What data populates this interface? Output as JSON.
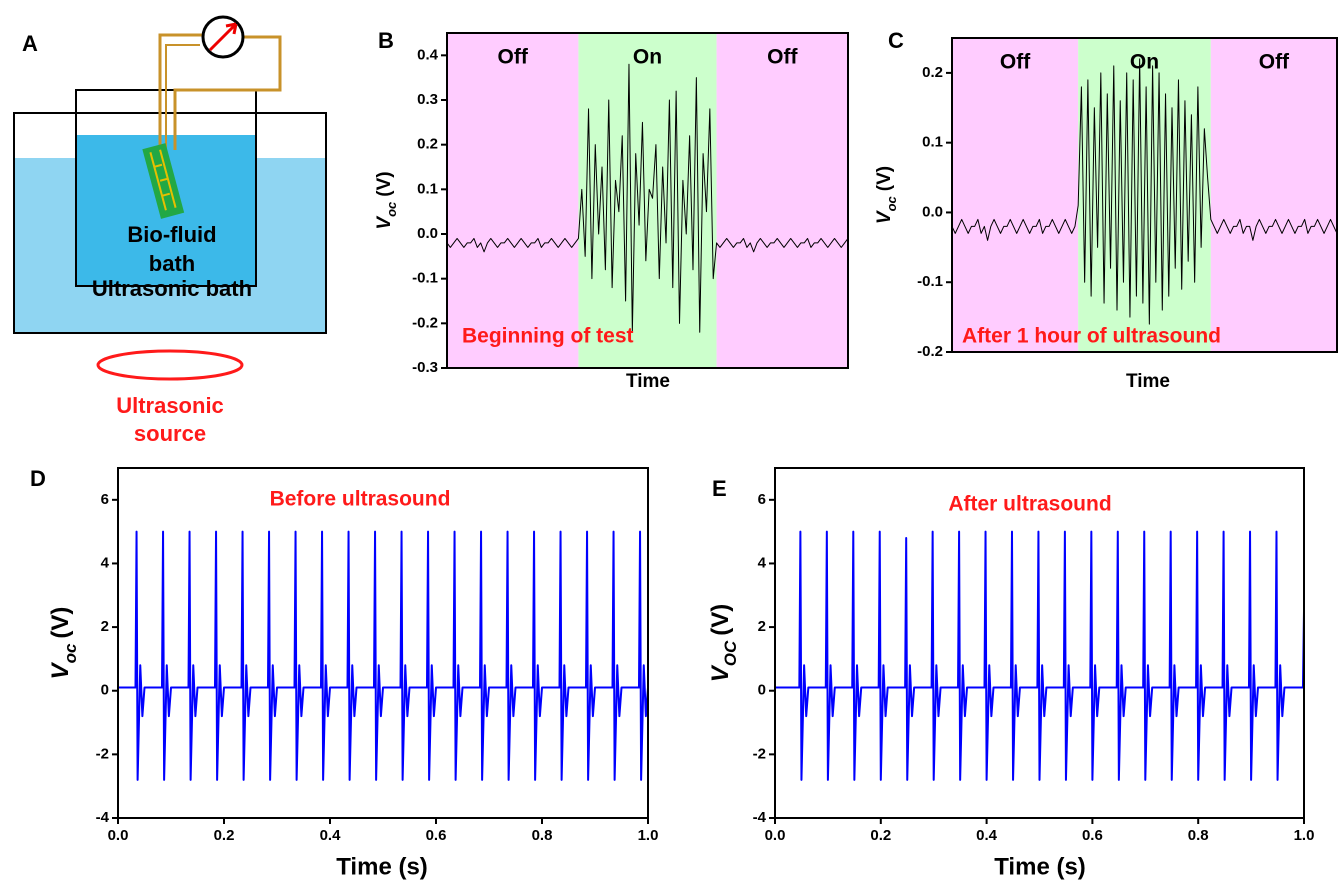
{
  "diagram": {
    "panel_label": "A",
    "fluid_lines": [
      "Bio-fluid",
      "bath"
    ],
    "bath_label": "Ultrasonic bath",
    "source_lines": [
      "Ultrasonic",
      "source"
    ]
  },
  "chart_data": [
    {
      "type": "line",
      "panel_label": "B",
      "x_label": "Time",
      "y_label": {
        "symbol": "V",
        "subscript": "oc",
        "unit": "(V)"
      },
      "annotation": "Beginning of test",
      "color": "#000000",
      "ylim": [
        -0.3,
        0.45
      ],
      "yticks": [
        -0.3,
        -0.2,
        -0.1,
        {
          "value": 0,
          "label": "0.0"
        },
        0.1,
        0.2,
        0.3,
        0.4
      ],
      "regions": [
        {
          "label": "Off",
          "color": "#ffccff",
          "start": 0,
          "end": 39
        },
        {
          "label": "On",
          "color": "#ccffcc",
          "start": 39,
          "end": 80
        },
        {
          "label": "Off",
          "color": "#ffccff",
          "start": 80,
          "end": 119
        }
      ],
      "values": [
        -0.02,
        -0.03,
        -0.02,
        -0.01,
        -0.02,
        -0.03,
        -0.02,
        -0.02,
        -0.01,
        -0.03,
        -0.02,
        -0.04,
        -0.02,
        -0.01,
        -0.02,
        -0.03,
        -0.02,
        -0.02,
        -0.01,
        -0.02,
        -0.03,
        -0.02,
        -0.01,
        -0.02,
        -0.03,
        -0.02,
        -0.02,
        -0.01,
        -0.03,
        -0.02,
        -0.02,
        -0.01,
        -0.02,
        -0.03,
        -0.02,
        -0.01,
        -0.02,
        -0.03,
        -0.02,
        -0.01,
        0.1,
        -0.05,
        0.28,
        -0.1,
        0.2,
        0.0,
        0.15,
        -0.08,
        0.3,
        -0.12,
        0.12,
        0.05,
        0.22,
        -0.15,
        0.38,
        -0.22,
        0.18,
        0.02,
        0.25,
        -0.06,
        0.1,
        0.08,
        0.2,
        -0.1,
        0.15,
        -0.02,
        0.3,
        -0.12,
        0.32,
        -0.2,
        0.12,
        0.0,
        0.22,
        -0.08,
        0.35,
        -0.22,
        0.18,
        0.05,
        0.28,
        -0.1,
        -0.02,
        -0.03,
        -0.02,
        -0.01,
        -0.02,
        -0.03,
        -0.02,
        -0.02,
        -0.01,
        -0.03,
        -0.02,
        -0.04,
        -0.02,
        -0.01,
        -0.02,
        -0.03,
        -0.02,
        -0.02,
        -0.01,
        -0.02,
        -0.03,
        -0.02,
        -0.01,
        -0.02,
        -0.03,
        -0.02,
        -0.02,
        -0.01,
        -0.03,
        -0.02,
        -0.02,
        -0.01,
        -0.02,
        -0.03,
        -0.02,
        -0.01,
        -0.02,
        -0.03,
        -0.02,
        -0.01
      ]
    },
    {
      "type": "line",
      "panel_label": "C",
      "x_label": "Time",
      "y_label": {
        "symbol": "V",
        "subscript": "oc",
        "unit": "(V)"
      },
      "annotation": "After 1 hour of ultrasound",
      "color": "#000000",
      "ylim": [
        -0.2,
        0.25
      ],
      "yticks": [
        -0.2,
        -0.1,
        {
          "value": 0,
          "label": "0.0"
        },
        0.1,
        0.2
      ],
      "regions": [
        {
          "label": "Off",
          "color": "#ffccff",
          "start": 0,
          "end": 39
        },
        {
          "label": "On",
          "color": "#ccffcc",
          "start": 39,
          "end": 80
        },
        {
          "label": "Off",
          "color": "#ffccff",
          "start": 80,
          "end": 119
        }
      ],
      "values": [
        -0.02,
        -0.03,
        -0.02,
        -0.01,
        -0.02,
        -0.03,
        -0.02,
        -0.02,
        -0.01,
        -0.03,
        -0.02,
        -0.04,
        -0.02,
        -0.01,
        -0.02,
        -0.03,
        -0.02,
        -0.02,
        -0.01,
        -0.02,
        -0.03,
        -0.02,
        -0.01,
        -0.02,
        -0.03,
        -0.02,
        -0.02,
        -0.01,
        -0.03,
        -0.02,
        -0.02,
        -0.01,
        -0.02,
        -0.03,
        -0.02,
        -0.01,
        -0.02,
        -0.03,
        -0.02,
        0.01,
        0.18,
        -0.1,
        0.19,
        -0.12,
        0.15,
        -0.05,
        0.2,
        -0.13,
        0.17,
        -0.08,
        0.21,
        -0.14,
        0.16,
        -0.1,
        0.2,
        -0.15,
        0.19,
        -0.12,
        0.22,
        -0.13,
        0.18,
        -0.16,
        0.21,
        -0.1,
        0.2,
        -0.14,
        0.17,
        -0.12,
        0.15,
        -0.08,
        0.19,
        -0.11,
        0.16,
        -0.07,
        0.14,
        -0.1,
        0.18,
        -0.05,
        0.12,
        0.05,
        -0.01,
        -0.02,
        -0.03,
        -0.02,
        -0.01,
        -0.02,
        -0.03,
        -0.02,
        -0.02,
        -0.01,
        -0.03,
        -0.02,
        -0.02,
        -0.04,
        -0.02,
        -0.01,
        -0.02,
        -0.03,
        -0.02,
        -0.02,
        -0.01,
        -0.02,
        -0.03,
        -0.02,
        -0.01,
        -0.02,
        -0.03,
        -0.02,
        -0.02,
        -0.01,
        -0.03,
        -0.02,
        -0.02,
        -0.01,
        -0.02,
        -0.03,
        -0.02,
        -0.01,
        -0.02,
        -0.03
      ]
    },
    {
      "type": "line",
      "panel_label": "D",
      "x_label": "Time (s)",
      "y_label": {
        "symbol": "V",
        "subscript": "oc",
        "unit": "(V)"
      },
      "annotation": "Before ultrasound",
      "color": "#0000ff",
      "xlim": [
        0,
        1
      ],
      "xticks": [
        {
          "value": 0,
          "label": "0.0"
        },
        0.2,
        0.4,
        0.6,
        0.8,
        {
          "value": 1,
          "label": "1.0"
        }
      ],
      "ylim": [
        -4,
        7
      ],
      "yticks": [
        -4,
        -2,
        0,
        2,
        4,
        6
      ],
      "x": [
        0,
        0.033,
        0.035,
        0.037,
        0.042,
        0.046,
        0.05,
        0.083,
        0.085,
        0.087,
        0.092,
        0.096,
        0.1,
        0.133,
        0.135,
        0.137,
        0.142,
        0.146,
        0.15,
        0.183,
        0.185,
        0.187,
        0.192,
        0.196,
        0.2,
        0.233,
        0.235,
        0.237,
        0.242,
        0.246,
        0.25,
        0.283,
        0.285,
        0.287,
        0.292,
        0.296,
        0.3,
        0.333,
        0.335,
        0.337,
        0.342,
        0.346,
        0.35,
        0.383,
        0.385,
        0.387,
        0.392,
        0.396,
        0.4,
        0.433,
        0.435,
        0.437,
        0.442,
        0.446,
        0.45,
        0.483,
        0.485,
        0.487,
        0.492,
        0.496,
        0.5,
        0.533,
        0.535,
        0.537,
        0.542,
        0.546,
        0.55,
        0.583,
        0.585,
        0.587,
        0.592,
        0.596,
        0.6,
        0.633,
        0.635,
        0.637,
        0.642,
        0.646,
        0.65,
        0.683,
        0.685,
        0.687,
        0.692,
        0.696,
        0.7,
        0.733,
        0.735,
        0.737,
        0.742,
        0.746,
        0.75,
        0.783,
        0.785,
        0.787,
        0.792,
        0.796,
        0.8,
        0.833,
        0.835,
        0.837,
        0.842,
        0.846,
        0.85,
        0.883,
        0.885,
        0.887,
        0.892,
        0.896,
        0.9,
        0.933,
        0.935,
        0.937,
        0.942,
        0.946,
        0.95,
        0.983,
        0.985,
        0.987,
        0.992,
        0.996,
        1.0
      ],
      "values": [
        0.1,
        0.1,
        5,
        -2.8,
        0.8,
        -0.8,
        0.1,
        0.1,
        5,
        -2.8,
        0.8,
        -0.8,
        0.1,
        0.1,
        5,
        -2.8,
        0.8,
        -0.8,
        0.1,
        0.1,
        5,
        -2.8,
        0.8,
        -0.8,
        0.1,
        0.1,
        5,
        -2.8,
        0.8,
        -0.8,
        0.1,
        0.1,
        5,
        -2.8,
        0.8,
        -0.8,
        0.1,
        0.1,
        5,
        -2.8,
        0.8,
        -0.8,
        0.1,
        0.1,
        5,
        -2.8,
        0.8,
        -0.8,
        0.1,
        0.1,
        5,
        -2.8,
        0.8,
        -0.8,
        0.1,
        0.1,
        5,
        -2.8,
        0.8,
        -0.8,
        0.1,
        0.1,
        5,
        -2.8,
        0.8,
        -0.8,
        0.1,
        0.1,
        5,
        -2.8,
        0.8,
        -0.8,
        0.1,
        0.1,
        5,
        -2.8,
        0.8,
        -0.8,
        0.1,
        0.1,
        5,
        -2.8,
        0.8,
        -0.8,
        0.1,
        0.1,
        5,
        -2.8,
        0.8,
        -0.8,
        0.1,
        0.1,
        5,
        -2.8,
        0.8,
        -0.8,
        0.1,
        0.1,
        5,
        -2.8,
        0.8,
        -0.8,
        0.1,
        0.1,
        5,
        -2.8,
        0.8,
        -0.8,
        0.1,
        0.1,
        5,
        -2.8,
        0.8,
        -0.8,
        0.1,
        0.1,
        5,
        -2.8,
        0.8,
        -0.8,
        0.1
      ]
    },
    {
      "type": "line",
      "panel_label": "E",
      "x_label": "Time (s)",
      "y_label": {
        "symbol": "V",
        "subscript": "OC",
        "unit": "(V)"
      },
      "annotation": "After ultrasound",
      "color": "#0000ff",
      "xlim": [
        0,
        1
      ],
      "xticks": [
        {
          "value": 0,
          "label": "0.0"
        },
        0.2,
        0.4,
        0.6,
        0.8,
        {
          "value": 1,
          "label": "1.0"
        }
      ],
      "ylim": [
        -4,
        7
      ],
      "yticks": [
        -4,
        -2,
        0,
        2,
        4,
        6
      ],
      "x": [
        0,
        0.046,
        0.048,
        0.05,
        0.055,
        0.059,
        0.063,
        0.096,
        0.098,
        0.1,
        0.105,
        0.109,
        0.113,
        0.146,
        0.148,
        0.15,
        0.155,
        0.159,
        0.163,
        0.196,
        0.198,
        0.2,
        0.205,
        0.209,
        0.213,
        0.246,
        0.248,
        0.25,
        0.255,
        0.259,
        0.263,
        0.296,
        0.298,
        0.3,
        0.305,
        0.309,
        0.313,
        0.346,
        0.348,
        0.35,
        0.355,
        0.359,
        0.363,
        0.396,
        0.398,
        0.4,
        0.405,
        0.409,
        0.413,
        0.446,
        0.448,
        0.45,
        0.455,
        0.459,
        0.463,
        0.496,
        0.498,
        0.5,
        0.505,
        0.509,
        0.513,
        0.546,
        0.548,
        0.55,
        0.555,
        0.559,
        0.563,
        0.596,
        0.598,
        0.6,
        0.605,
        0.609,
        0.613,
        0.646,
        0.648,
        0.65,
        0.655,
        0.659,
        0.663,
        0.696,
        0.698,
        0.7,
        0.705,
        0.709,
        0.713,
        0.746,
        0.748,
        0.75,
        0.755,
        0.759,
        0.763,
        0.796,
        0.798,
        0.8,
        0.805,
        0.809,
        0.813,
        0.846,
        0.848,
        0.85,
        0.855,
        0.859,
        0.863,
        0.896,
        0.898,
        0.9,
        0.905,
        0.909,
        0.913,
        0.946,
        0.948,
        0.95,
        0.955,
        0.959,
        0.963,
        0.998,
        1.0
      ],
      "values": [
        0.1,
        0.1,
        5,
        -2.8,
        0.8,
        -0.8,
        0.1,
        0.1,
        5,
        -2.8,
        0.8,
        -0.8,
        0.1,
        0.1,
        5,
        -2.8,
        0.8,
        -0.8,
        0.1,
        0.1,
        5,
        -2.8,
        0.8,
        -0.8,
        0.1,
        0.1,
        4.8,
        -2.8,
        0.8,
        -0.8,
        0.1,
        0.1,
        5,
        -2.8,
        0.8,
        -0.8,
        0.1,
        0.1,
        5,
        -2.8,
        0.8,
        -0.8,
        0.1,
        0.1,
        5,
        -2.8,
        0.8,
        -0.8,
        0.1,
        0.1,
        5,
        -2.8,
        0.8,
        -0.8,
        0.1,
        0.1,
        5,
        -2.8,
        0.8,
        -0.8,
        0.1,
        0.1,
        5,
        -2.8,
        0.8,
        -0.8,
        0.1,
        0.1,
        5,
        -2.8,
        0.8,
        -0.8,
        0.1,
        0.1,
        5,
        -2.8,
        0.8,
        -0.8,
        0.1,
        0.1,
        5,
        -2.8,
        0.8,
        -0.8,
        0.1,
        0.1,
        5,
        -2.8,
        0.8,
        -0.8,
        0.1,
        0.1,
        5,
        -2.8,
        0.8,
        -0.8,
        0.1,
        0.1,
        5,
        -2.8,
        0.8,
        -0.8,
        0.1,
        0.1,
        5,
        -2.8,
        0.8,
        -0.8,
        0.1,
        0.1,
        5,
        -2.8,
        0.8,
        -0.8,
        0.1,
        0.1,
        2.5
      ]
    }
  ]
}
